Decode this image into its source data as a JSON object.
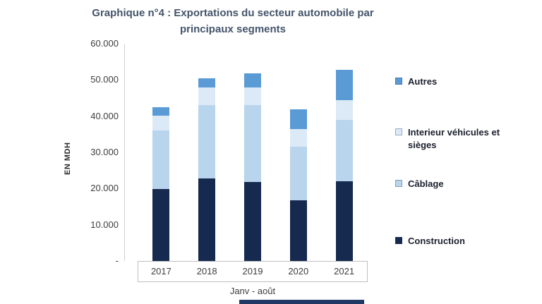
{
  "chart_data": {
    "type": "bar",
    "stacked": true,
    "title": "Graphique n°4 : Exportations du secteur automobile par principaux segments",
    "ylabel": "EN MDH",
    "xlabel": "Janv - août",
    "categories": [
      "2017",
      "2018",
      "2019",
      "2020",
      "2021"
    ],
    "series": [
      {
        "name": "Construction",
        "color": "#16294e",
        "values": [
          19800,
          22800,
          21800,
          16800,
          22000
        ]
      },
      {
        "name": "Câblage",
        "color": "#b9d5ed",
        "values": [
          16200,
          20200,
          21200,
          14700,
          17000
        ]
      },
      {
        "name": "Interieur véhicules et sièges",
        "color": "#dceaf7",
        "values": [
          4100,
          5000,
          5000,
          5000,
          5500
        ]
      },
      {
        "name": "Autres",
        "color": "#5b9bd5",
        "values": [
          2400,
          2500,
          3800,
          5300,
          8300
        ]
      }
    ],
    "ylim": [
      0,
      60000
    ],
    "yticks": [
      "60.000",
      "50.000",
      "40.000",
      "30.000",
      "20.000",
      "10.000",
      "-"
    ],
    "grid": false,
    "legend_position": "right",
    "legend_order_top_to_bottom": [
      "Autres",
      "Interieur véhicules et sièges",
      "Câblage",
      "Construction"
    ]
  }
}
